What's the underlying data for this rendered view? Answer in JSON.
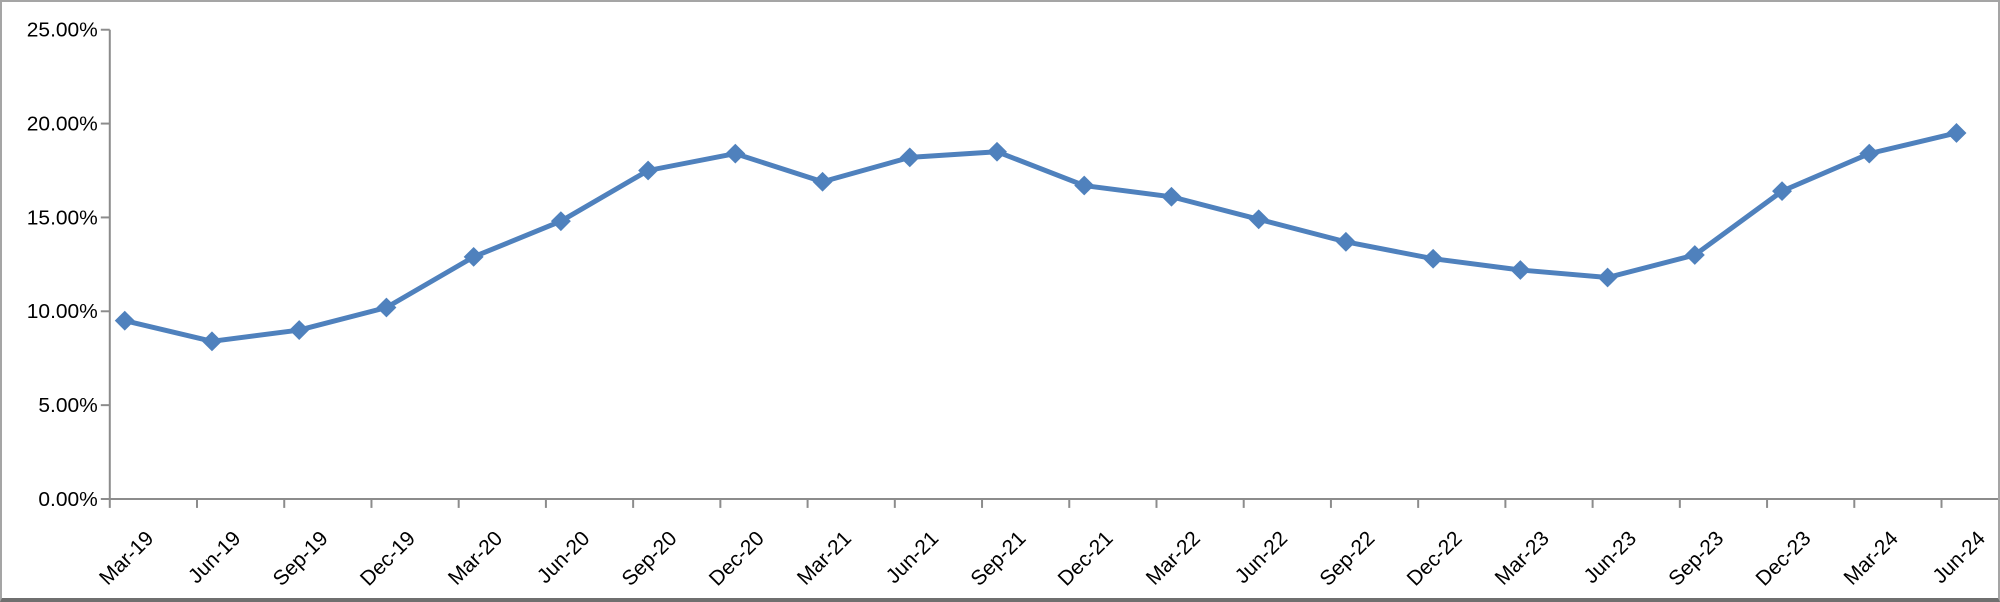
{
  "chart_data": {
    "type": "line",
    "title": "",
    "xlabel": "",
    "ylabel": "",
    "categories": [
      "Mar-19",
      "Jun-19",
      "Sep-19",
      "Dec-19",
      "Mar-20",
      "Jun-20",
      "Sep-20",
      "Dec-20",
      "Mar-21",
      "Jun-21",
      "Sep-21",
      "Dec-21",
      "Mar-22",
      "Jun-22",
      "Sep-22",
      "Dec-22",
      "Mar-23",
      "Jun-23",
      "Sep-23",
      "Dec-23",
      "Mar-24",
      "Jun-24"
    ],
    "series": [
      {
        "name": "",
        "values": [
          9.5,
          8.4,
          9.0,
          10.2,
          12.9,
          14.8,
          17.5,
          18.4,
          16.9,
          18.2,
          18.5,
          16.7,
          16.1,
          14.9,
          13.7,
          12.8,
          12.2,
          11.8,
          13.0,
          16.4,
          18.4,
          19.5
        ]
      }
    ],
    "values_unit": "%",
    "ylim": [
      0,
      25
    ],
    "y_ticks": [
      {
        "value": 25,
        "label": "25.00%"
      },
      {
        "value": 20,
        "label": "20.00%"
      },
      {
        "value": 15,
        "label": "15.00%"
      },
      {
        "value": 10,
        "label": "10.00%"
      },
      {
        "value": 5,
        "label": "5.00%"
      },
      {
        "value": 0,
        "label": "0.00%"
      }
    ],
    "grid": false,
    "legend": false,
    "marker": "diamond",
    "colors": {
      "line": "#4F81BD",
      "marker_fill": "#4F81BD",
      "axis": "#8C8C8C",
      "tick": "#8C8C8C",
      "label_text": "#000000",
      "background": "#FFFFFF"
    }
  }
}
